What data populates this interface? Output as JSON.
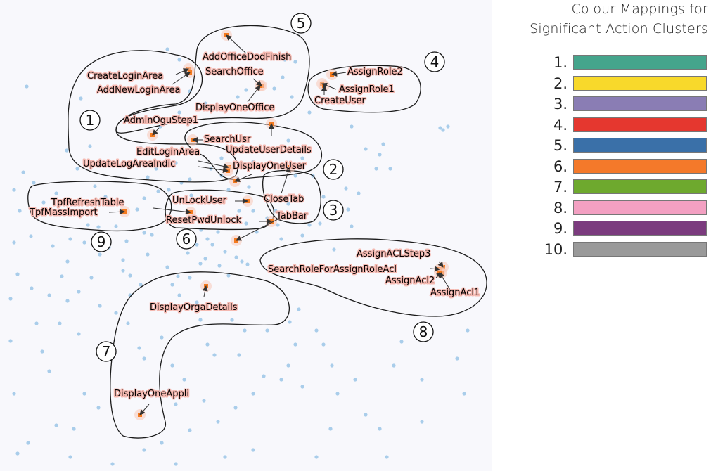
{
  "chart_data": {
    "type": "scatter",
    "title": "",
    "xlabel": "",
    "ylabel": "",
    "legend": {
      "title_lines": [
        "Colour Mappings for",
        "Significant Action Clusters"
      ],
      "placement": "top-right",
      "items": [
        {
          "label": "1.",
          "color": "#45a58c"
        },
        {
          "label": "2.",
          "color": "#f8d92b"
        },
        {
          "label": "3.",
          "color": "#8a7db4"
        },
        {
          "label": "4.",
          "color": "#e5372f"
        },
        {
          "label": "5.",
          "color": "#3a70a8"
        },
        {
          "label": "6.",
          "color": "#f4792a"
        },
        {
          "label": "7.",
          "color": "#6ea92e"
        },
        {
          "label": "8.",
          "color": "#f3a0c2"
        },
        {
          "label": "9.",
          "color": "#7b3b7e"
        },
        {
          "label": "10.",
          "color": "#9a9a9a"
        }
      ]
    },
    "colors": {
      "background_point": "#a9cdea",
      "action_point": "#f47a1f",
      "cluster_outline": "#1a1a1a",
      "arrow": "#333333"
    },
    "clusters": [
      {
        "label": "1"
      },
      {
        "label": "2"
      },
      {
        "label": "3"
      },
      {
        "label": "4"
      },
      {
        "label": "5"
      },
      {
        "label": "6"
      },
      {
        "label": "7"
      },
      {
        "label": "8"
      },
      {
        "label": "9"
      }
    ],
    "actions": [
      {
        "label": "CreateLoginArea"
      },
      {
        "label": "AddNewLoginArea"
      },
      {
        "label": "AddOfficeDodFinish"
      },
      {
        "label": "SearchOffice"
      },
      {
        "label": "DisplayOneOffice"
      },
      {
        "label": "AdminOguStep1"
      },
      {
        "label": "AssignRole2"
      },
      {
        "label": "AssignRole1"
      },
      {
        "label": "CreateUser"
      },
      {
        "label": "SearchUsr"
      },
      {
        "label": "UpdateUserDetails"
      },
      {
        "label": "EditLoginArea"
      },
      {
        "label": "UpdateLogAreaIndic"
      },
      {
        "label": "DisplayOneUser"
      },
      {
        "label": "CloseTab"
      },
      {
        "label": "TabBar"
      },
      {
        "label": "UnLockUser"
      },
      {
        "label": "ResetPwdUnlock"
      },
      {
        "label": "TpfRefreshTable"
      },
      {
        "label": "TpfMassImport"
      },
      {
        "label": "AssignACLStep3"
      },
      {
        "label": "SearchRoleForAssignRoleAcl"
      },
      {
        "label": "AssignAcl2"
      },
      {
        "label": "AssignAcl1"
      },
      {
        "label": "DisplayOrgaDetails"
      },
      {
        "label": "DisplayOneAppli"
      }
    ]
  }
}
